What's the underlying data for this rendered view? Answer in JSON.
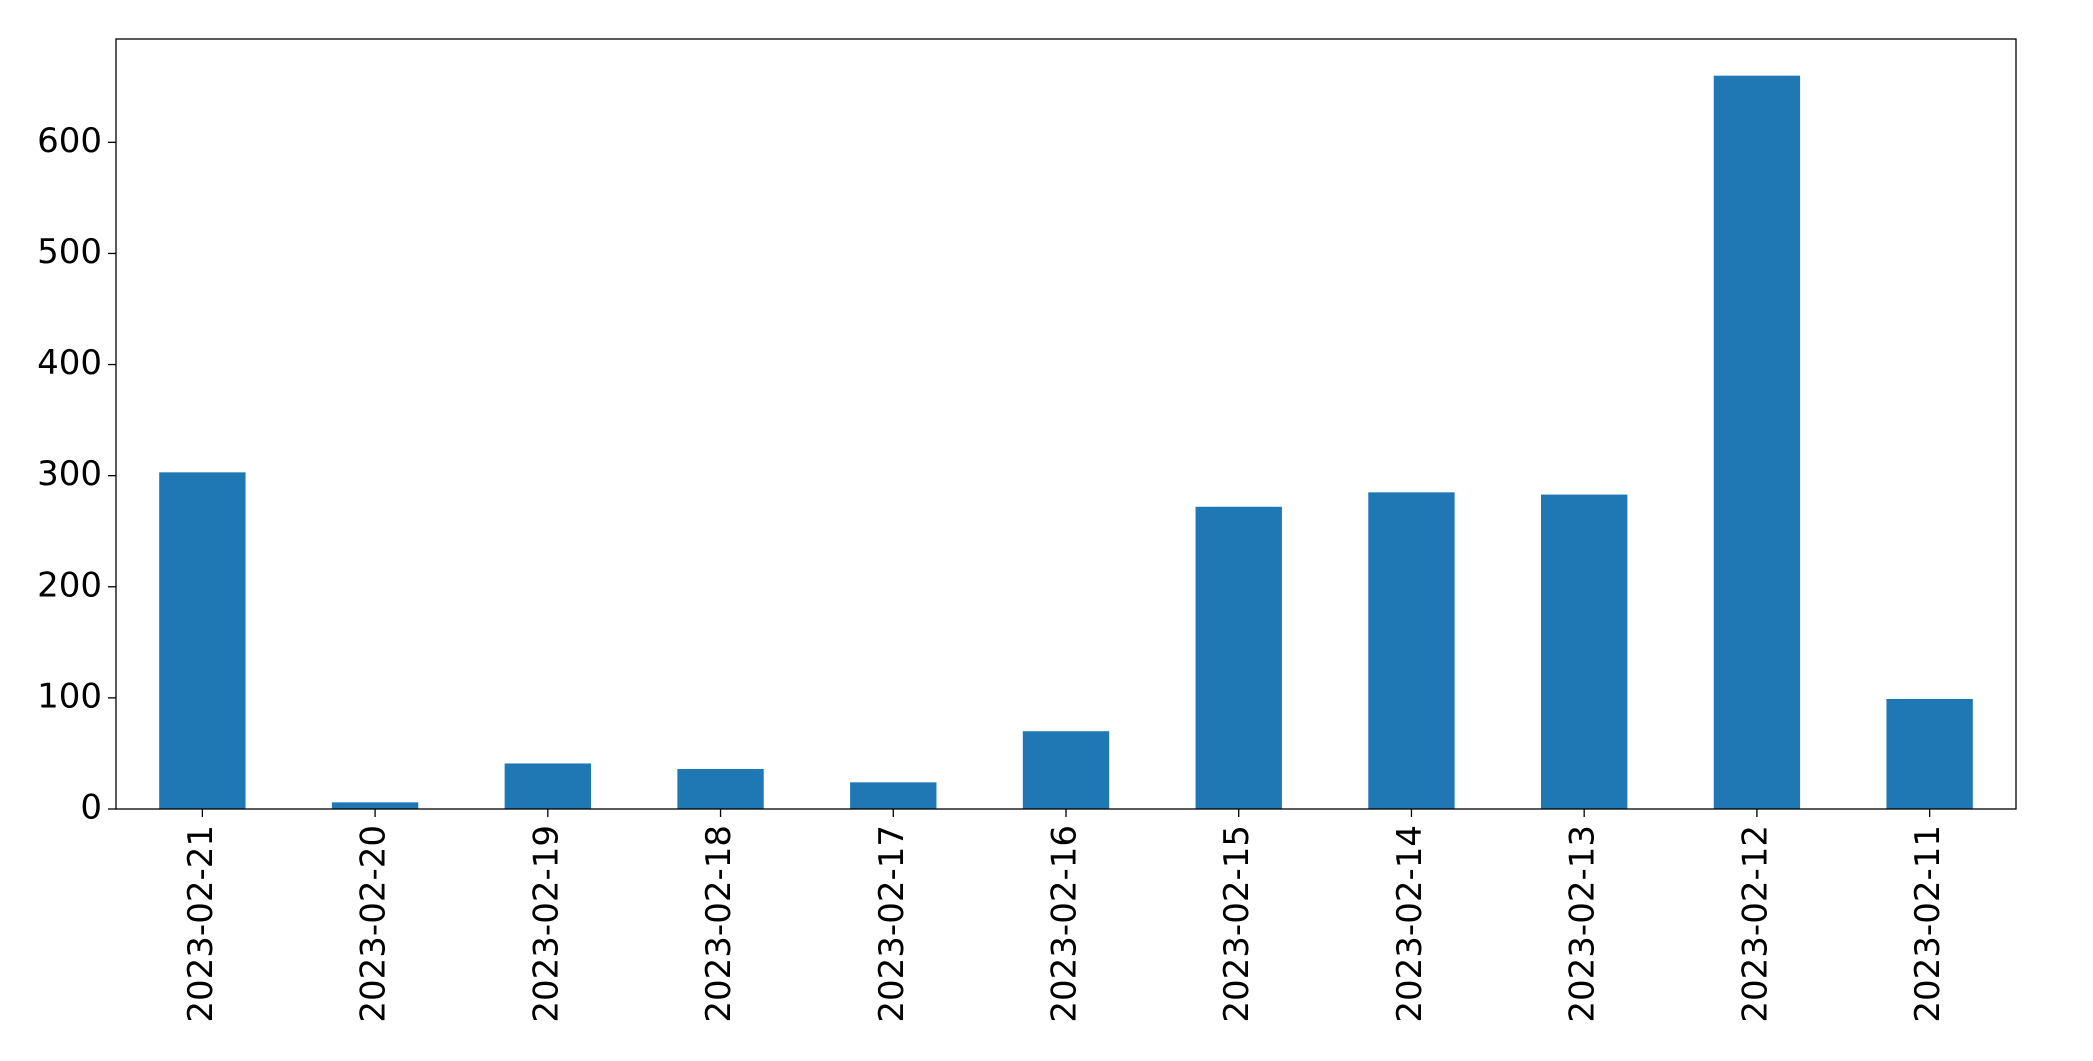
{
  "chart_data": {
    "type": "bar",
    "categories": [
      "2023-02-21",
      "2023-02-20",
      "2023-02-19",
      "2023-02-18",
      "2023-02-17",
      "2023-02-16",
      "2023-02-15",
      "2023-02-14",
      "2023-02-13",
      "2023-02-12",
      "2023-02-11"
    ],
    "values": [
      303,
      6,
      41,
      36,
      24,
      70,
      272,
      285,
      283,
      660,
      99
    ],
    "color": "#1f77b4",
    "ylim": [
      0,
      693
    ],
    "yticks": [
      0,
      100,
      200,
      300,
      400,
      500,
      600
    ],
    "grid": false
  }
}
